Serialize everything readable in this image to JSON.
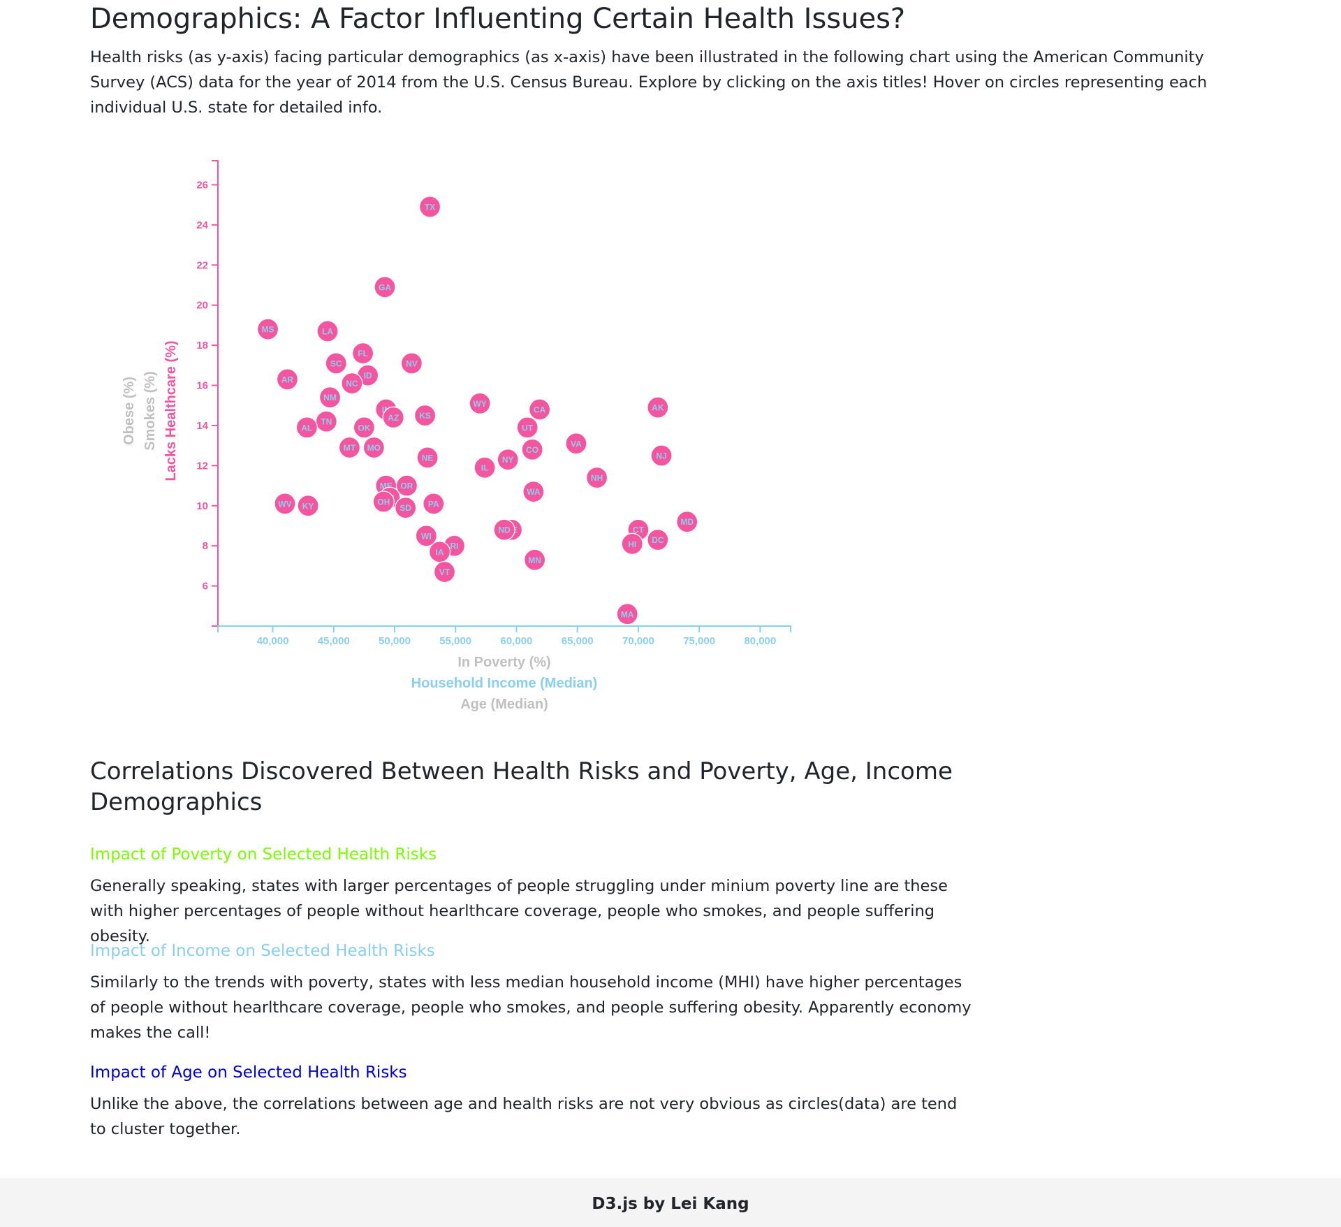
{
  "header": {
    "title": "Demographics: A Factor Influenting Certain Health Issues?",
    "intro": "Health risks (as y-axis) facing particular demographics (as x-axis) have been illustrated in the following chart using the American Community Survey (ACS) data for the year of 2014 from the U.S. Census Bureau. Explore by clicking on the axis titles! Hover on circles representing each individual U.S. state for detailed info."
  },
  "colors": {
    "active_x": "#89cff0",
    "active_y": "#f5559f",
    "inactive": "#c0c0c0",
    "circle_fill": "#f5559f",
    "poverty_heading": "#7cfc00",
    "income_heading": "#89cff0",
    "age_heading": "#0000cd"
  },
  "chart_data": {
    "type": "scatter",
    "xlabels": [
      {
        "text": "In Poverty (%)",
        "active": false
      },
      {
        "text": "Household Income (Median)",
        "active": true
      },
      {
        "text": "Age (Median)",
        "active": false
      }
    ],
    "ylabels": [
      {
        "text": "Lacks Healthcare (%)",
        "active": true
      },
      {
        "text": "Smokes (%)",
        "active": false
      },
      {
        "text": "Obese (%)",
        "active": false
      }
    ],
    "xlim": [
      35500,
      82500
    ],
    "ylim": [
      4,
      27.2
    ],
    "xticks": [
      40000,
      45000,
      50000,
      55000,
      60000,
      65000,
      70000,
      75000,
      80000
    ],
    "xtick_labels": [
      "40,000",
      "45,000",
      "50,000",
      "55,000",
      "60,000",
      "65,000",
      "70,000",
      "75,000",
      "80,000"
    ],
    "yticks": [
      6,
      8,
      10,
      12,
      14,
      16,
      18,
      20,
      22,
      24,
      26
    ],
    "ytick_labels": [
      "6",
      "8",
      "10",
      "12",
      "14",
      "16",
      "18",
      "20",
      "22",
      "24",
      "26"
    ],
    "points": [
      {
        "abbr": "TX",
        "x": 52900,
        "y": 24.9
      },
      {
        "abbr": "GA",
        "x": 49200,
        "y": 20.9
      },
      {
        "abbr": "MS",
        "x": 39600,
        "y": 18.8
      },
      {
        "abbr": "LA",
        "x": 44500,
        "y": 18.7
      },
      {
        "abbr": "FL",
        "x": 47400,
        "y": 17.6
      },
      {
        "abbr": "SC",
        "x": 45200,
        "y": 17.1
      },
      {
        "abbr": "NV",
        "x": 51400,
        "y": 17.1
      },
      {
        "abbr": "ID",
        "x": 47800,
        "y": 16.5
      },
      {
        "abbr": "AR",
        "x": 41200,
        "y": 16.3
      },
      {
        "abbr": "NC",
        "x": 46500,
        "y": 16.1
      },
      {
        "abbr": "NM",
        "x": 44700,
        "y": 15.4
      },
      {
        "abbr": "WY",
        "x": 57000,
        "y": 15.1
      },
      {
        "abbr": "AK",
        "x": 71600,
        "y": 14.9
      },
      {
        "abbr": "IN",
        "x": 49300,
        "y": 14.8
      },
      {
        "abbr": "CA",
        "x": 61900,
        "y": 14.8
      },
      {
        "abbr": "KS",
        "x": 52500,
        "y": 14.5
      },
      {
        "abbr": "AZ",
        "x": 49900,
        "y": 14.4
      },
      {
        "abbr": "TN",
        "x": 44400,
        "y": 14.2
      },
      {
        "abbr": "AL",
        "x": 42800,
        "y": 13.9
      },
      {
        "abbr": "OK",
        "x": 47500,
        "y": 13.9
      },
      {
        "abbr": "UT",
        "x": 60900,
        "y": 13.9
      },
      {
        "abbr": "VA",
        "x": 64900,
        "y": 13.1
      },
      {
        "abbr": "MT",
        "x": 46300,
        "y": 12.9
      },
      {
        "abbr": "MO",
        "x": 48300,
        "y": 12.9
      },
      {
        "abbr": "CO",
        "x": 61300,
        "y": 12.8
      },
      {
        "abbr": "NJ",
        "x": 71900,
        "y": 12.5
      },
      {
        "abbr": "NE",
        "x": 52700,
        "y": 12.4
      },
      {
        "abbr": "NY",
        "x": 59300,
        "y": 12.3
      },
      {
        "abbr": "IL",
        "x": 57400,
        "y": 11.9
      },
      {
        "abbr": "NH",
        "x": 66600,
        "y": 11.4
      },
      {
        "abbr": "ME",
        "x": 49300,
        "y": 11.0
      },
      {
        "abbr": "OR",
        "x": 51000,
        "y": 11.0
      },
      {
        "abbr": "WA",
        "x": 61400,
        "y": 10.7
      },
      {
        "abbr": "MI",
        "x": 49600,
        "y": 10.4
      },
      {
        "abbr": "OH",
        "x": 49100,
        "y": 10.2
      },
      {
        "abbr": "WV",
        "x": 41000,
        "y": 10.1
      },
      {
        "abbr": "PA",
        "x": 53200,
        "y": 10.1
      },
      {
        "abbr": "KY",
        "x": 42900,
        "y": 10.0
      },
      {
        "abbr": "SD",
        "x": 50900,
        "y": 9.9
      },
      {
        "abbr": "MD",
        "x": 74000,
        "y": 9.2
      },
      {
        "abbr": "DE",
        "x": 59600,
        "y": 8.8
      },
      {
        "abbr": "ND",
        "x": 59000,
        "y": 8.8
      },
      {
        "abbr": "CT",
        "x": 70000,
        "y": 8.8
      },
      {
        "abbr": "WI",
        "x": 52600,
        "y": 8.5
      },
      {
        "abbr": "DC",
        "x": 71600,
        "y": 8.3
      },
      {
        "abbr": "HI",
        "x": 69500,
        "y": 8.1
      },
      {
        "abbr": "RI",
        "x": 54900,
        "y": 8.0
      },
      {
        "abbr": "IA",
        "x": 53700,
        "y": 7.7
      },
      {
        "abbr": "MN",
        "x": 61500,
        "y": 7.3
      },
      {
        "abbr": "VT",
        "x": 54100,
        "y": 6.7
      },
      {
        "abbr": "MA",
        "x": 69100,
        "y": 4.6
      }
    ]
  },
  "findings": {
    "title": "Correlations Discovered Between Health Risks and Poverty, Age, Income Demographics",
    "poverty": {
      "heading": "Impact of Poverty on Selected Health Risks",
      "text": "Generally speaking, states with larger percentages of people struggling under minium poverty line are these with higher percentages of people without hearlthcare coverage, people who smokes, and people suffering obesity."
    },
    "income": {
      "heading": "Impact of Income on Selected Health Risks",
      "text": "Similarly to the trends with poverty, states with less median household income (MHI) have higher percentages of people without hearlthcare coverage, people who smokes, and people suffering obesity. Apparently economy makes the call!"
    },
    "age": {
      "heading": "Impact of Age on Selected Health Risks",
      "text": "Unlike the above, the correlations between age and health risks are not very obvious as circles(data) are tend to cluster together."
    }
  },
  "footer": {
    "credit": "D3.js by Lei Kang"
  }
}
